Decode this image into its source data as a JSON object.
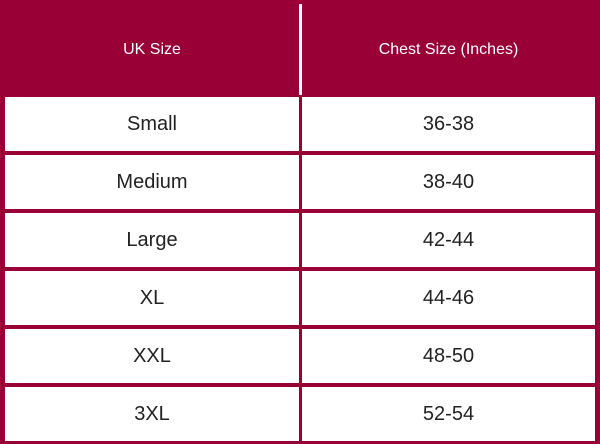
{
  "table": {
    "header": [
      "UK Size",
      "Chest Size (Inches)"
    ],
    "rows": [
      [
        "Small",
        "36-38"
      ],
      [
        "Medium",
        "38-40"
      ],
      [
        "Large",
        "42-44"
      ],
      [
        "XL",
        "44-46"
      ],
      [
        "XXL",
        "48-50"
      ],
      [
        "3XL",
        "52-54"
      ]
    ]
  }
}
